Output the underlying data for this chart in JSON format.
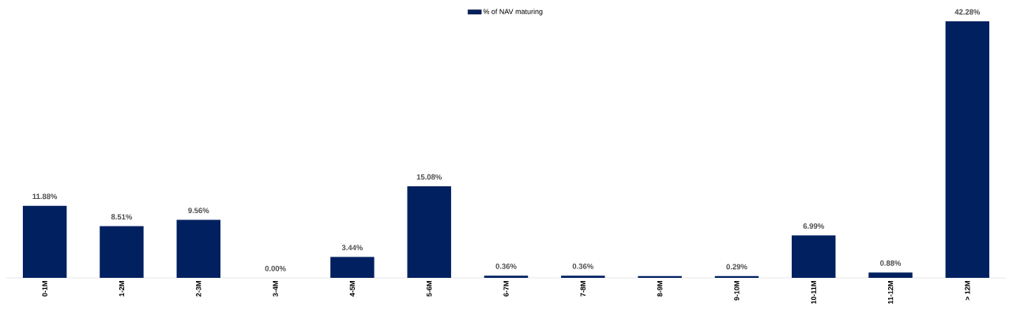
{
  "chart_data": {
    "type": "bar",
    "categories": [
      "0-1M",
      "1-2M",
      "2-3M",
      "3-4M",
      "4-5M",
      "5-6M",
      "6-7M",
      "7-8M",
      "8-9M",
      "9-10M",
      "10-11M",
      "11-12M",
      "> 12M"
    ],
    "series": [
      {
        "name": "% of NAV maturing",
        "color": "#002060",
        "values": [
          11.88,
          8.51,
          9.56,
          0.0,
          3.44,
          15.08,
          0.36,
          0.36,
          0.3,
          0.29,
          6.99,
          0.88,
          42.28
        ],
        "value_labels": [
          "11.88%",
          "8.51%",
          "9.56%",
          "0.00%",
          "3.44%",
          "15.08%",
          "0.36%",
          "0.36%",
          null,
          "0.29%",
          "6.99%",
          "0.88%",
          "42.28%"
        ]
      }
    ],
    "legend": "top"
  }
}
